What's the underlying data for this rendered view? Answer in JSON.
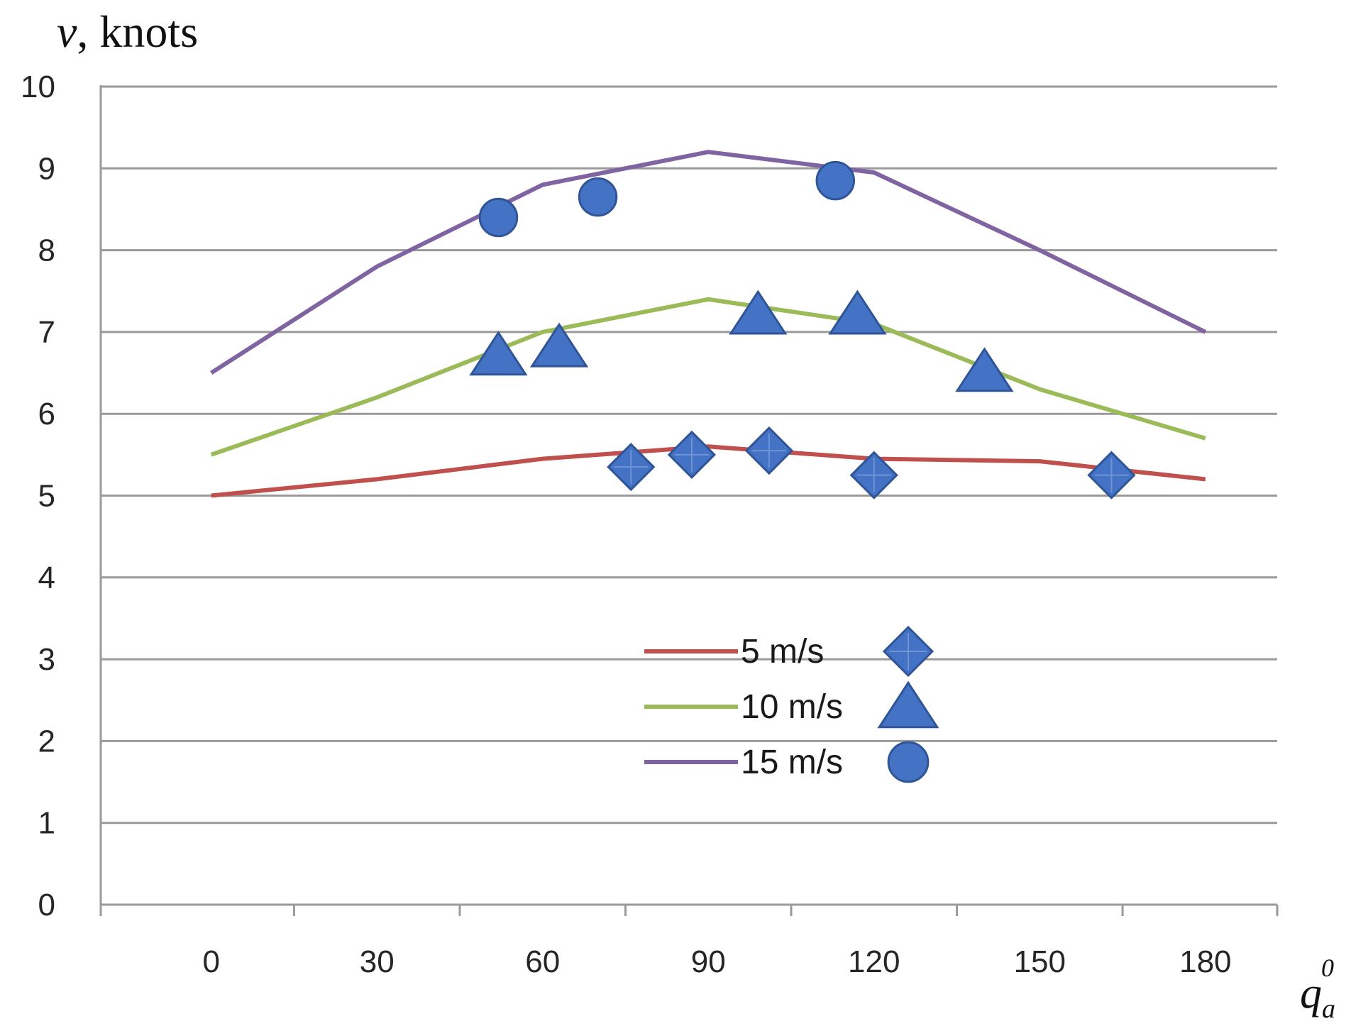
{
  "chart_data": {
    "type": "line",
    "title": "",
    "ylabel": {
      "var": "v",
      "unit": ", knots"
    },
    "xlabel": {
      "var": "q",
      "sub": "a",
      "sup": "0"
    },
    "xlim": [
      -20,
      193
    ],
    "ylim": [
      0,
      10
    ],
    "x_ticks": [
      "0",
      "30",
      "60",
      "90",
      "120",
      "150",
      "180"
    ],
    "y_ticks": [
      "0",
      "1",
      "2",
      "3",
      "4",
      "5",
      "6",
      "7",
      "8",
      "9",
      "10"
    ],
    "grid": true,
    "legend_position": "center-bottom",
    "series": [
      {
        "name": "5 m/s",
        "color": "#c0504d",
        "marker": "diamond",
        "line": {
          "x": [
            0,
            30,
            60,
            90,
            120,
            150,
            180
          ],
          "y": [
            5.0,
            5.2,
            5.45,
            5.6,
            5.45,
            5.42,
            5.2
          ]
        },
        "points": {
          "x": [
            76,
            87,
            101,
            120,
            163
          ],
          "y": [
            5.35,
            5.5,
            5.55,
            5.25,
            5.25
          ]
        }
      },
      {
        "name": "10 m/s",
        "color": "#9bbb59",
        "marker": "triangle",
        "line": {
          "x": [
            0,
            30,
            60,
            90,
            120,
            150,
            180
          ],
          "y": [
            5.5,
            6.2,
            7.0,
            7.4,
            7.1,
            6.3,
            5.7
          ]
        },
        "points": {
          "x": [
            52,
            63,
            99,
            117,
            140
          ],
          "y": [
            6.7,
            6.8,
            7.2,
            7.2,
            6.5
          ]
        }
      },
      {
        "name": "15 m/s",
        "color": "#8064a2",
        "marker": "circle",
        "line": {
          "x": [
            0,
            30,
            60,
            90,
            120,
            150,
            180
          ],
          "y": [
            6.5,
            7.8,
            8.8,
            9.2,
            8.95,
            8.0,
            7.0
          ]
        },
        "points": {
          "x": [
            52,
            70,
            113
          ],
          "y": [
            8.4,
            8.65,
            8.85
          ]
        }
      }
    ],
    "marker_color": "#4472c4"
  }
}
